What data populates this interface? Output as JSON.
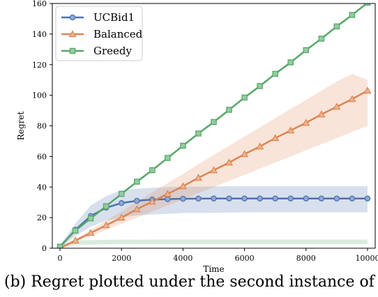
{
  "caption": "(b) Regret plotted under the second instance of the",
  "chart_data": {
    "type": "line",
    "xlabel": "Time",
    "ylabel": "Regret",
    "xlim": [
      -250,
      10250
    ],
    "ylim": [
      0,
      160
    ],
    "xticks": [
      0,
      2000,
      4000,
      6000,
      8000,
      10000
    ],
    "yticks": [
      0,
      20,
      40,
      60,
      80,
      100,
      120,
      140,
      160
    ],
    "legend": "top-left",
    "grid": false,
    "x": [
      0,
      500,
      1000,
      1500,
      2000,
      2500,
      3000,
      3500,
      4000,
      4500,
      5000,
      5500,
      6000,
      6500,
      7000,
      7500,
      8000,
      8500,
      9000,
      9500,
      10000
    ],
    "series": [
      {
        "name": "UCBid1",
        "color": "#4c72b0",
        "marker": "circle",
        "values": [
          1,
          12,
          21,
          26.5,
          29.5,
          31,
          31.8,
          32.1,
          32.3,
          32.4,
          32.5,
          32.5,
          32.5,
          32.5,
          32.5,
          32.5,
          32.5,
          32.5,
          32.5,
          32.5,
          32.5
        ],
        "band_lower": [
          0,
          8,
          14,
          18,
          20,
          21.5,
          22,
          22.5,
          23,
          23,
          23.2,
          23.3,
          23.4,
          23.5,
          23.5,
          23.5,
          23.5,
          23.5,
          23.5,
          23.5,
          23.5
        ],
        "band_upper": [
          2,
          16,
          28,
          34,
          38,
          39,
          39.5,
          40,
          40.2,
          40.3,
          40.4,
          40.5,
          40.5,
          40.5,
          40.5,
          40.5,
          40.5,
          40.5,
          40.5,
          40.5,
          40.5
        ]
      },
      {
        "name": "Balanced",
        "color": "#dd8452",
        "marker": "triangle",
        "values": [
          0,
          5,
          10,
          15,
          20,
          25.5,
          30.5,
          35.5,
          40.5,
          46,
          51,
          56,
          61.5,
          66.5,
          72,
          77,
          82,
          87.5,
          92.5,
          97.5,
          103
        ],
        "band_lower": [
          0,
          4,
          8,
          12,
          16,
          20,
          24,
          28,
          32,
          36,
          40,
          44,
          48,
          52,
          56,
          60,
          64,
          68,
          72,
          76,
          80
        ],
        "band_upper": [
          0.5,
          6,
          12,
          18,
          24,
          30.5,
          36.5,
          42.5,
          48.5,
          55,
          61,
          67,
          73,
          79,
          85,
          91,
          97,
          103,
          109,
          114,
          110
        ]
      },
      {
        "name": "Greedy",
        "color": "#55a868",
        "marker": "square",
        "values": [
          1,
          11.5,
          19.5,
          27.5,
          35.5,
          43.5,
          51,
          59,
          67,
          75,
          82.5,
          90.5,
          98.5,
          106,
          114,
          121.5,
          129.5,
          137,
          145,
          152.5,
          160.5
        ],
        "band_lower": [
          0.2,
          2,
          2.3,
          2.5,
          2.6,
          2.6,
          2.7,
          2.7,
          2.7,
          2.7,
          2.7,
          2.7,
          2.7,
          2.7,
          2.7,
          2.7,
          2.7,
          2.7,
          2.7,
          2.7,
          2.7
        ],
        "band_upper": [
          2,
          5,
          5.3,
          5.5,
          5.6,
          5.6,
          5.7,
          5.7,
          5.7,
          5.7,
          5.7,
          5.7,
          5.7,
          5.7,
          5.7,
          5.7,
          5.7,
          5.7,
          5.7,
          5.7,
          5.7
        ]
      }
    ]
  }
}
